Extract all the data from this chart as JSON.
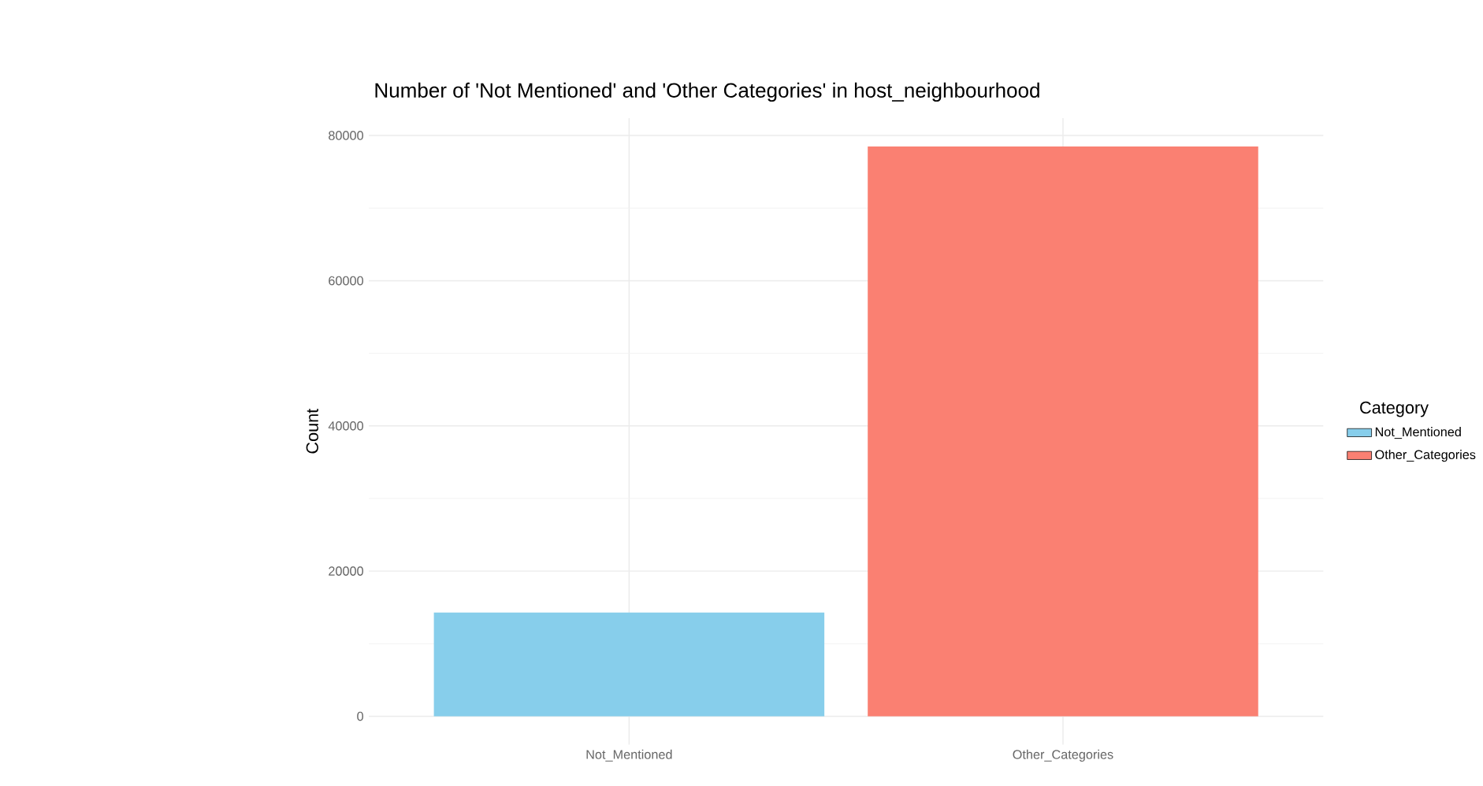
{
  "chart_data": {
    "type": "bar",
    "title": "Number of 'Not Mentioned' and 'Other Categories' in host_neighbourhood",
    "ylabel": "Count",
    "legend_title": "Category",
    "categories": [
      "Not_Mentioned",
      "Other_Categories"
    ],
    "series": [
      {
        "name": "Not_Mentioned",
        "color": "#87ceeb",
        "values": [
          14300,
          null
        ]
      },
      {
        "name": "Other_Categories",
        "color": "#fa8072",
        "values": [
          null,
          78500
        ]
      }
    ],
    "ylim": [
      -3900,
      82400
    ],
    "yticks": [
      0,
      20000,
      40000,
      60000,
      80000
    ],
    "grid": true,
    "legend": "right"
  }
}
